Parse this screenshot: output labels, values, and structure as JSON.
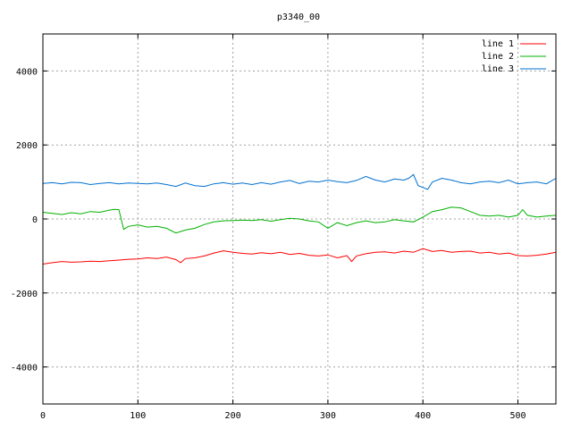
{
  "chart_data": {
    "type": "line",
    "title": "p3340_00",
    "xlabel": "",
    "ylabel": "",
    "xlim": [
      0,
      540
    ],
    "ylim": [
      -5000,
      5000
    ],
    "x_ticks": [
      0,
      100,
      200,
      300,
      400,
      500
    ],
    "y_ticks": [
      -4000,
      -2000,
      0,
      2000,
      4000
    ],
    "grid": true,
    "legend_position": "top-right",
    "series": [
      {
        "name": "line 1",
        "color": "#ff0000",
        "x": [
          0,
          10,
          20,
          30,
          40,
          50,
          60,
          70,
          80,
          90,
          100,
          110,
          120,
          130,
          140,
          145,
          150,
          160,
          170,
          180,
          190,
          200,
          210,
          220,
          230,
          240,
          250,
          260,
          270,
          280,
          290,
          300,
          310,
          320,
          325,
          330,
          340,
          350,
          360,
          370,
          380,
          390,
          400,
          410,
          420,
          430,
          440,
          450,
          460,
          470,
          480,
          490,
          500,
          510,
          520,
          530,
          540
        ],
        "y": [
          -1220,
          -1180,
          -1150,
          -1170,
          -1160,
          -1140,
          -1150,
          -1130,
          -1110,
          -1090,
          -1080,
          -1050,
          -1070,
          -1030,
          -1100,
          -1180,
          -1070,
          -1050,
          -1000,
          -920,
          -860,
          -900,
          -930,
          -950,
          -910,
          -940,
          -900,
          -960,
          -930,
          -980,
          -1000,
          -970,
          -1050,
          -990,
          -1150,
          -1000,
          -940,
          -900,
          -890,
          -920,
          -870,
          -900,
          -800,
          -880,
          -850,
          -900,
          -880,
          -870,
          -920,
          -900,
          -950,
          -920,
          -990,
          -1000,
          -980,
          -950,
          -900
        ]
      },
      {
        "name": "line 2",
        "color": "#00b000",
        "x": [
          0,
          10,
          20,
          30,
          40,
          50,
          60,
          70,
          75,
          80,
          85,
          90,
          100,
          110,
          120,
          130,
          140,
          150,
          160,
          170,
          180,
          190,
          200,
          210,
          220,
          230,
          240,
          250,
          260,
          270,
          280,
          290,
          300,
          310,
          320,
          330,
          340,
          350,
          360,
          370,
          380,
          390,
          400,
          410,
          420,
          430,
          440,
          450,
          460,
          470,
          480,
          490,
          500,
          505,
          510,
          520,
          530,
          540
        ],
        "y": [
          180,
          150,
          120,
          170,
          140,
          200,
          180,
          240,
          260,
          250,
          -280,
          -200,
          -160,
          -220,
          -200,
          -250,
          -380,
          -300,
          -250,
          -150,
          -80,
          -50,
          -40,
          -30,
          -40,
          -20,
          -60,
          -20,
          20,
          0,
          -50,
          -80,
          -250,
          -100,
          -180,
          -100,
          -50,
          -100,
          -80,
          -20,
          -50,
          -80,
          50,
          200,
          250,
          320,
          300,
          200,
          100,
          80,
          100,
          50,
          100,
          250,
          100,
          50,
          80,
          100
        ]
      },
      {
        "name": "line 3",
        "color": "#0070d0",
        "x": [
          0,
          10,
          20,
          30,
          40,
          50,
          60,
          70,
          80,
          90,
          100,
          110,
          120,
          130,
          140,
          150,
          160,
          170,
          180,
          190,
          200,
          210,
          220,
          230,
          240,
          250,
          260,
          270,
          280,
          290,
          300,
          310,
          320,
          330,
          340,
          350,
          360,
          370,
          380,
          385,
          390,
          395,
          400,
          405,
          410,
          420,
          430,
          440,
          450,
          460,
          470,
          480,
          490,
          500,
          510,
          520,
          530,
          540
        ],
        "y": [
          960,
          980,
          950,
          990,
          980,
          930,
          960,
          980,
          950,
          970,
          960,
          950,
          970,
          930,
          880,
          970,
          900,
          880,
          950,
          980,
          940,
          970,
          930,
          980,
          940,
          1000,
          1040,
          960,
          1020,
          1000,
          1050,
          1010,
          980,
          1040,
          1150,
          1050,
          1000,
          1080,
          1050,
          1100,
          1200,
          900,
          850,
          800,
          1000,
          1100,
          1050,
          980,
          950,
          1000,
          1020,
          980,
          1050,
          950,
          980,
          1000,
          950,
          1100
        ]
      }
    ]
  }
}
